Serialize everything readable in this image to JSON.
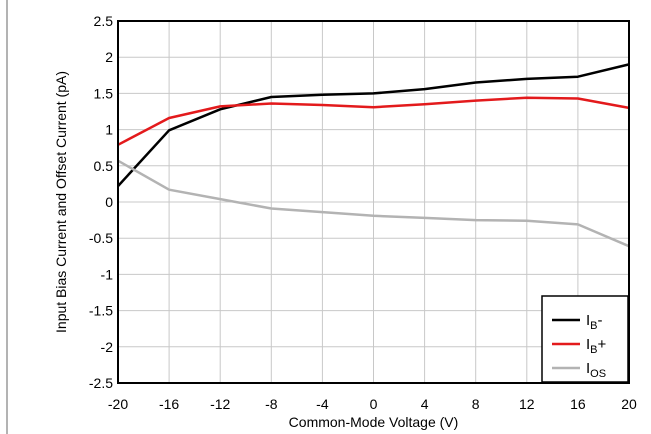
{
  "chart_data": {
    "type": "line",
    "title": "",
    "xlabel": "Common-Mode Voltage (V)",
    "ylabel": "Input Bias Current and Offset Current (pA)",
    "xlim": [
      -20,
      20
    ],
    "ylim": [
      -2.5,
      2.5
    ],
    "xticks": [
      -20,
      -16,
      -12,
      -8,
      -4,
      0,
      4,
      8,
      12,
      16,
      20
    ],
    "yticks": [
      -2.5,
      -2,
      -1.5,
      -1,
      -0.5,
      0,
      0.5,
      1,
      1.5,
      2,
      2.5
    ],
    "xtick_labels": [
      "-20",
      "-16",
      "-12",
      "-8",
      "-4",
      "0",
      "4",
      "8",
      "12",
      "16",
      "20"
    ],
    "ytick_labels": [
      "-2.5",
      "-2",
      "-1.5",
      "-1",
      "-0.5",
      "0",
      "0.5",
      "1",
      "1.5",
      "2",
      "2.5"
    ],
    "grid": true,
    "legend_position": "bottom-right",
    "x": [
      -20,
      -16,
      -12,
      -8,
      -4,
      0,
      4,
      8,
      12,
      16,
      20
    ],
    "series": [
      {
        "name": "I",
        "sub": "B",
        "suffix": "-",
        "color": "#000000",
        "values": [
          0.22,
          0.99,
          1.28,
          1.45,
          1.48,
          1.5,
          1.56,
          1.65,
          1.7,
          1.73,
          1.9
        ]
      },
      {
        "name": "I",
        "sub": "B",
        "suffix": "+",
        "color": "#e31a1c",
        "values": [
          0.79,
          1.16,
          1.32,
          1.36,
          1.34,
          1.31,
          1.35,
          1.4,
          1.44,
          1.43,
          1.3
        ]
      },
      {
        "name": "I",
        "sub": "OS",
        "suffix": "",
        "color": "#b3b3b3",
        "values": [
          0.57,
          0.17,
          0.04,
          -0.09,
          -0.14,
          -0.19,
          -0.22,
          -0.25,
          -0.26,
          -0.31,
          -0.61
        ]
      }
    ]
  }
}
